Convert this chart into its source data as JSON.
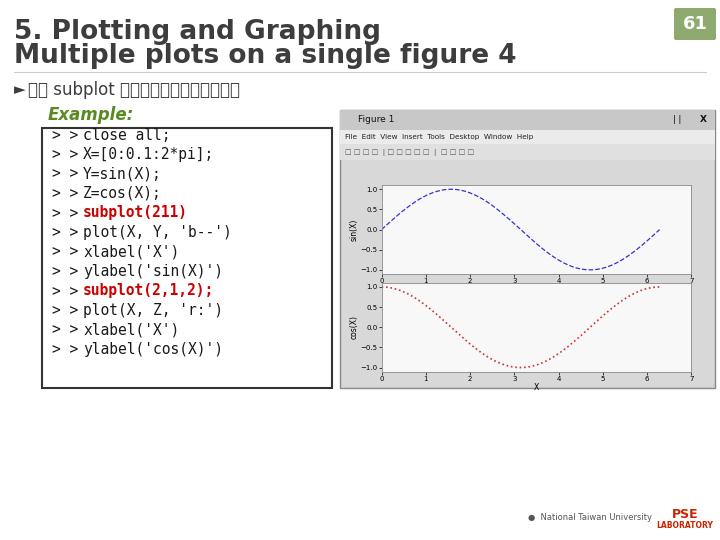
{
  "title_line1": "5. Plotting and Graphing",
  "title_line2": "Multiple plots on a single figure 4",
  "slide_number": "61",
  "subtitle": "使用 subplot 分割視窗呼現數個子圖形：",
  "example_label": "Example:",
  "code_lines": [
    [
      "> > ",
      "close all;",
      false
    ],
    [
      "> > ",
      "X=[0:0.1:2*pi];",
      false
    ],
    [
      "> > ",
      "Y=sin(X);",
      false
    ],
    [
      "> > ",
      "Z=cos(X);",
      false
    ],
    [
      "> > ",
      "subplot(211)",
      true
    ],
    [
      "> > ",
      "plot(X, Y, 'b--')",
      false
    ],
    [
      "> > ",
      "xlabel('X')",
      false
    ],
    [
      "> > ",
      "ylabel('sin(X)')",
      false
    ],
    [
      "> > ",
      "subplot(2,1,2);",
      true
    ],
    [
      "> > ",
      "plot(X, Z, 'r:')",
      false
    ],
    [
      "> > ",
      "xlabel('X')",
      false
    ],
    [
      "> > ",
      "ylabel('cos(X)')",
      false
    ]
  ],
  "highlight_parts": [
    [
      false,
      false
    ],
    [
      false,
      false
    ],
    [
      false,
      false
    ],
    [
      false,
      false
    ],
    [
      false,
      true
    ],
    [
      false,
      false
    ],
    [
      false,
      false
    ],
    [
      false,
      false
    ],
    [
      false,
      true
    ],
    [
      false,
      false
    ],
    [
      false,
      false
    ],
    [
      false,
      false
    ]
  ],
  "highlight_color": "#cc0000",
  "normal_color": "#1a1a1a",
  "title_color": "#3d3d3d",
  "example_color": "#5a8a20",
  "bg_color": "#ffffff",
  "slide_num_bg": "#8faa6e",
  "slide_num_color": "#ffffff",
  "code_box_border": "#333333",
  "win_title_bg": "#d0d0d0",
  "win_bg": "#f0f0f0",
  "plot_bg": "#ffffff",
  "menu_text": "File  Edit  View  Insert  Tools  Desktop  Window  Help"
}
